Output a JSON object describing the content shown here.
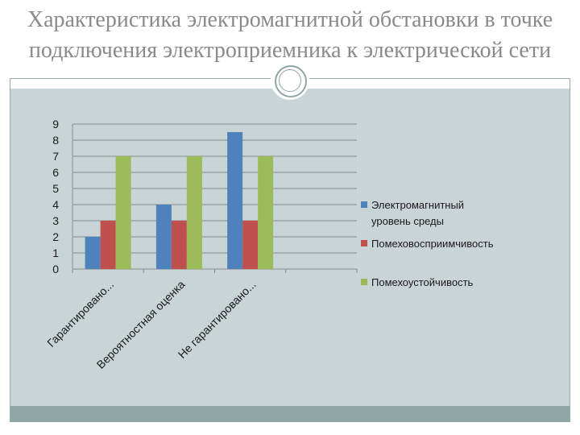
{
  "slide": {
    "title_line1": "Характеристика электромагнитной обстановки в точке",
    "title_line2": "подключения электроприемника к электрической сети"
  },
  "colors": {
    "series1": "#4f81bd",
    "series2": "#c0504d",
    "series3": "#9bbb59",
    "panel": "#c9d4d6",
    "footer": "#8ea6a4"
  },
  "chart_data": {
    "type": "bar",
    "categories": [
      "Гарантировано...",
      "Вероятностная оценка",
      "Не гарантировано..."
    ],
    "series": [
      {
        "name": "Электромагнитный уровень среды",
        "name_lines": [
          "Электромагнитный",
          "уровень среды"
        ],
        "values": [
          2,
          4,
          8.5
        ]
      },
      {
        "name": "Помеховосприимчивость",
        "name_lines": [
          "Помеховосприимчивость"
        ],
        "values": [
          3,
          3,
          3
        ]
      },
      {
        "name": "Помехоустойчивость",
        "name_lines": [
          "Помехоустойчивость"
        ],
        "values": [
          7,
          7,
          7
        ]
      }
    ],
    "yticks": [
      "0",
      "1",
      "2",
      "3",
      "4",
      "5",
      "6",
      "7",
      "8",
      "9"
    ],
    "ylim": [
      0,
      9
    ],
    "slots": 4,
    "grid": true,
    "legend": "right"
  }
}
